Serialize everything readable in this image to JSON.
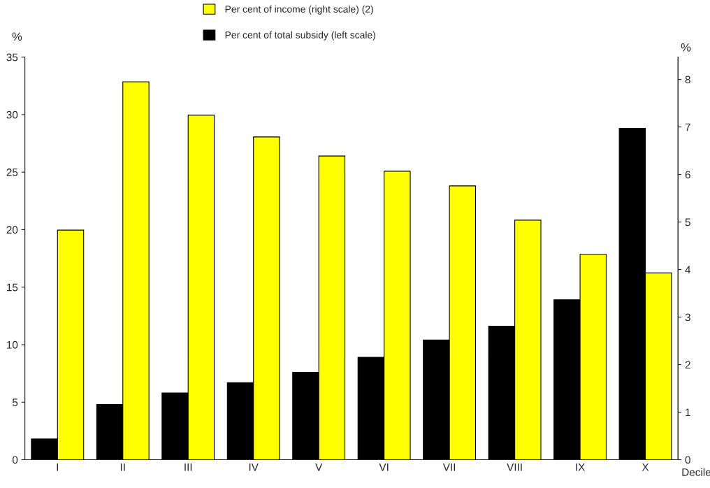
{
  "chart_data": {
    "type": "bar",
    "xlabel": "Decile",
    "ylabel": "%",
    "y2label": "%",
    "categories": [
      "I",
      "II",
      "III",
      "IV",
      "V",
      "VI",
      "VII",
      "VIII",
      "IX",
      "X"
    ],
    "series": [
      {
        "name": "Per cent of total subsidy (left scale)",
        "color": "#000000",
        "values": [
          1.8,
          4.8,
          5.8,
          6.7,
          7.6,
          8.9,
          10.4,
          11.6,
          13.9,
          28.8
        ]
      },
      {
        "name": "Per cent of income (right scale) (2)",
        "color": "#ffff00",
        "axis": "y2",
        "values": [
          4.83,
          7.95,
          7.25,
          6.79,
          6.39,
          6.07,
          5.76,
          5.04,
          4.32,
          3.93
        ]
      }
    ],
    "ylim": [
      0,
      35
    ],
    "yticks": [
      0,
      5,
      10,
      15,
      20,
      25,
      30,
      35
    ],
    "y2lim": [
      0,
      8.47
    ],
    "y2ticks": [
      0,
      1,
      2,
      3,
      4,
      5,
      6,
      7,
      8
    ],
    "grid": false,
    "legend": "top"
  }
}
